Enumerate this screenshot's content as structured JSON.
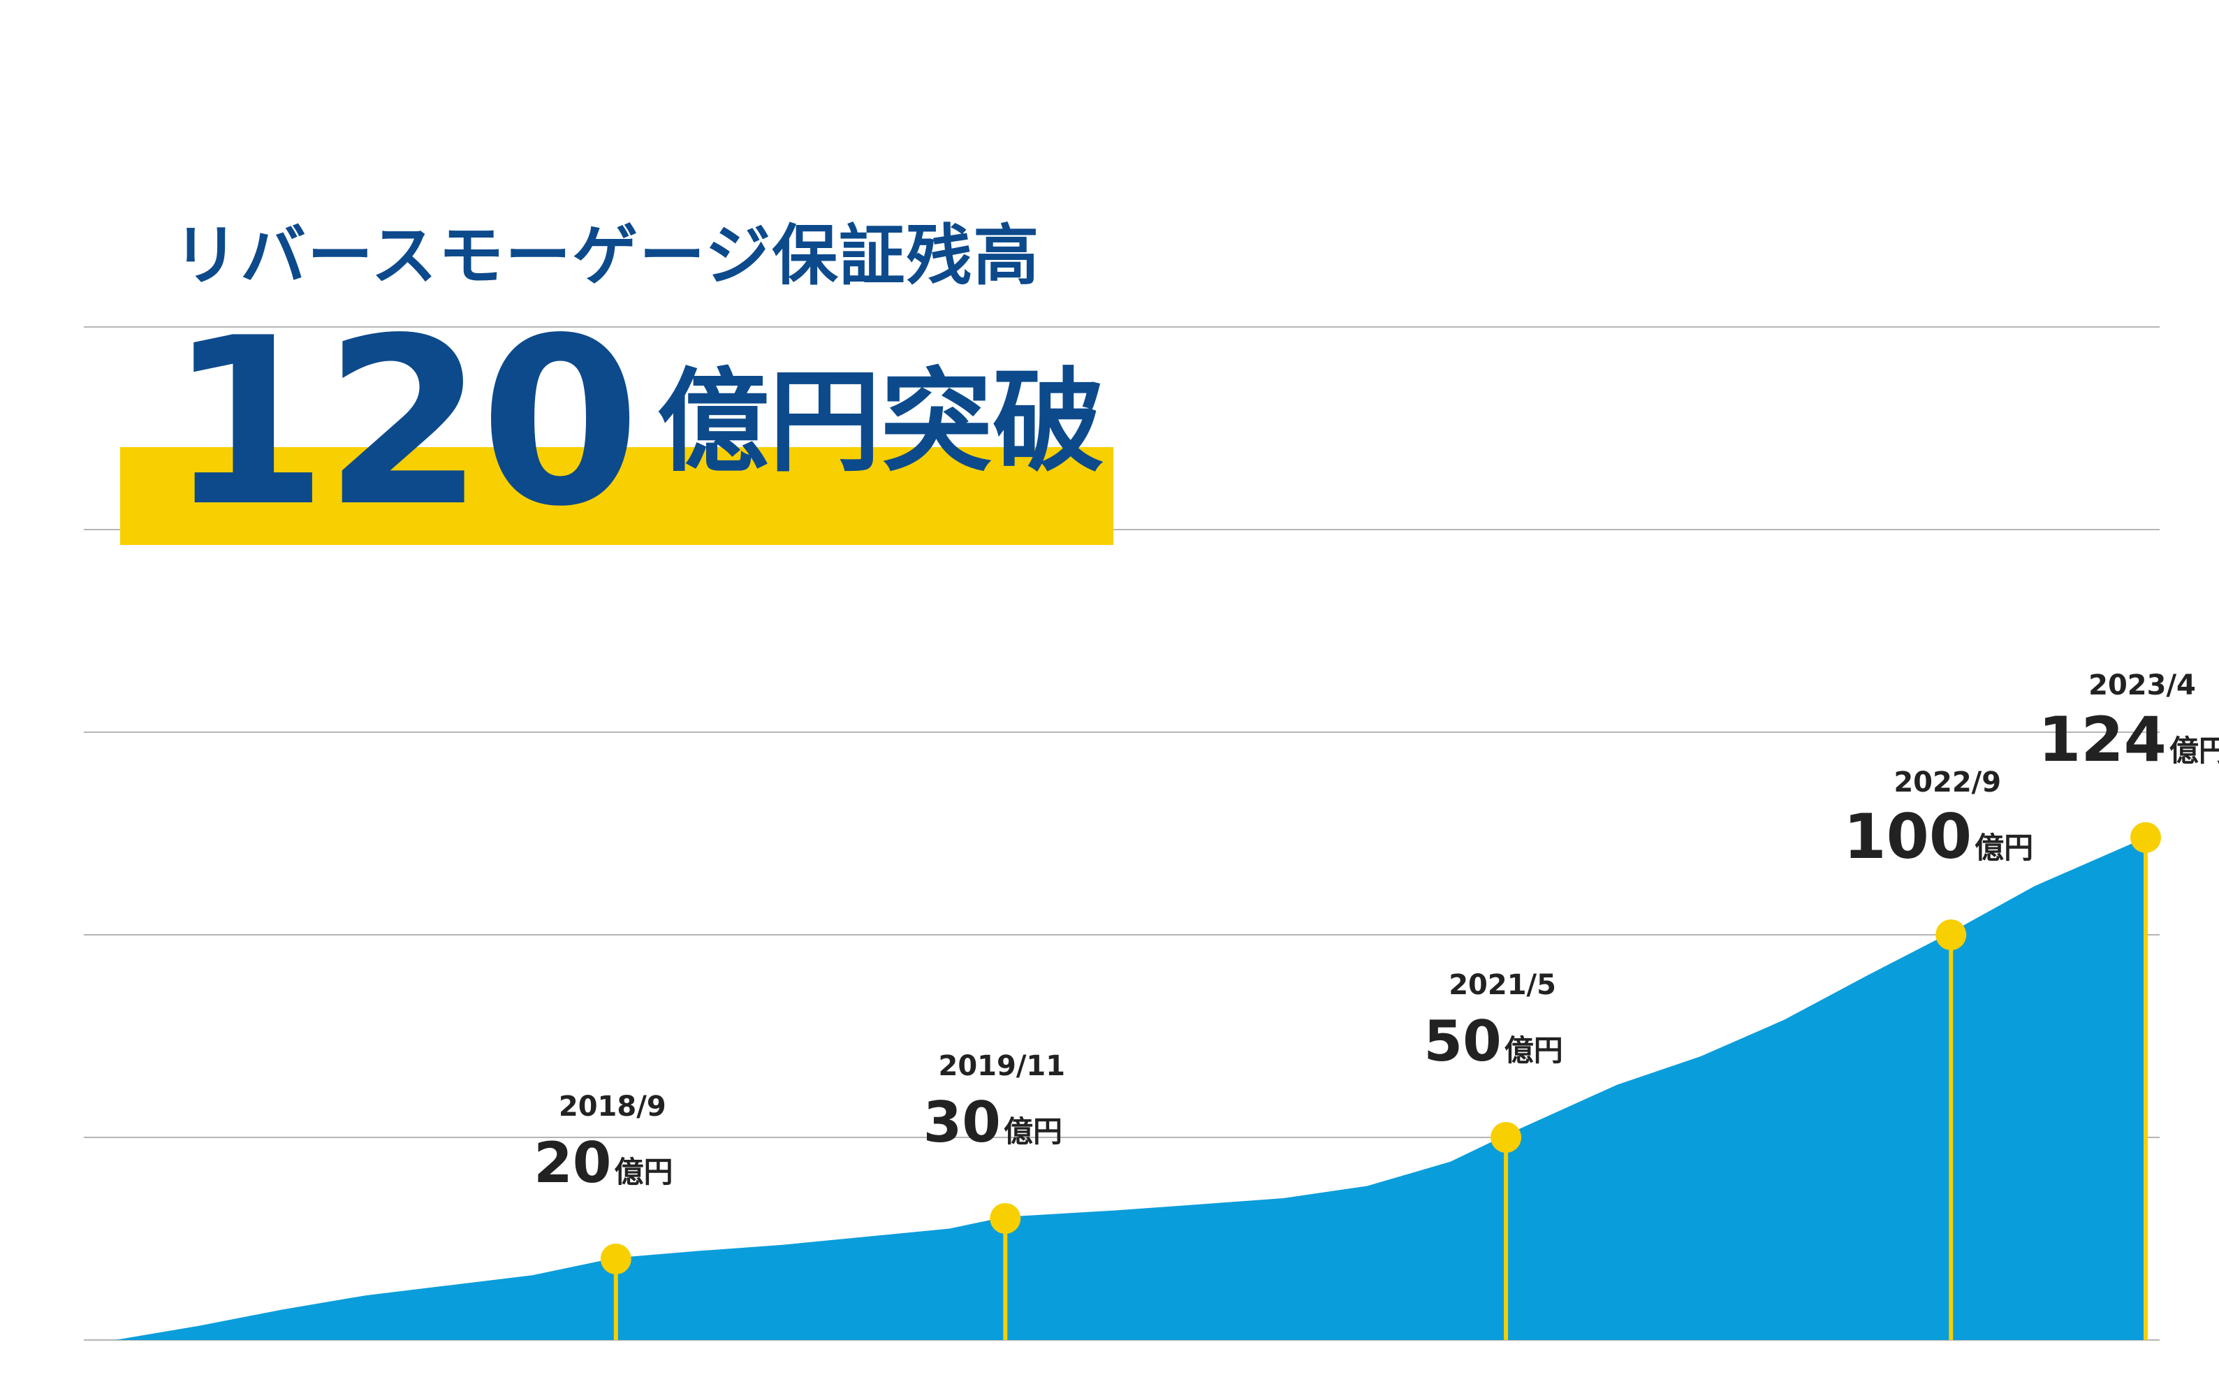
{
  "headline": {
    "subtitle": "リバースモーゲージ保証残高",
    "number": "120",
    "suffix": "億円突破"
  },
  "colors": {
    "area": "#0a9ddb",
    "marker": "#f8cf00",
    "highlight": "#f8cf00",
    "headline_text": "#0c4a8c",
    "grid": "#b5b5b5",
    "label_text": "#222222"
  },
  "chart_data": {
    "type": "area",
    "unit": "億円",
    "grid": true,
    "x_range": [
      "2017/3",
      "2023/4"
    ],
    "ylim": [
      0,
      120
    ],
    "series": [
      {
        "x": [
          "2017/3",
          "2017/6",
          "2017/9",
          "2017/12",
          "2018/3",
          "2018/6",
          "2018/9",
          "2018/12",
          "2019/3",
          "2019/6",
          "2019/9",
          "2019/11",
          "2020/3",
          "2020/6",
          "2020/9",
          "2020/12",
          "2021/3",
          "2021/5",
          "2021/9",
          "2021/12",
          "2022/3",
          "2022/6",
          "2022/9",
          "2022/12",
          "2023/4"
        ],
        "values": [
          0,
          3.5,
          7.5,
          11,
          13.5,
          16,
          20.3,
          22,
          23.5,
          25.5,
          27.5,
          30.4,
          32,
          33.5,
          35,
          38,
          44,
          50.6,
          63,
          70,
          79,
          90,
          100.6,
          112,
          124
        ]
      }
    ],
    "annotations": [
      {
        "x": "2018/9",
        "date": "2018/9",
        "value": 20,
        "num": "20",
        "unit": "億円"
      },
      {
        "x": "2019/11",
        "date": "2019/11",
        "value": 30,
        "num": "30",
        "unit": "億円"
      },
      {
        "x": "2021/5",
        "date": "2021/5",
        "value": 50,
        "num": "50",
        "unit": "億円"
      },
      {
        "x": "2022/9",
        "date": "2022/9",
        "value": 100,
        "num": "100",
        "unit": "億円"
      },
      {
        "x": "2023/4",
        "date": "2023/4",
        "value": 124,
        "num": "124",
        "unit": "億円"
      }
    ]
  }
}
